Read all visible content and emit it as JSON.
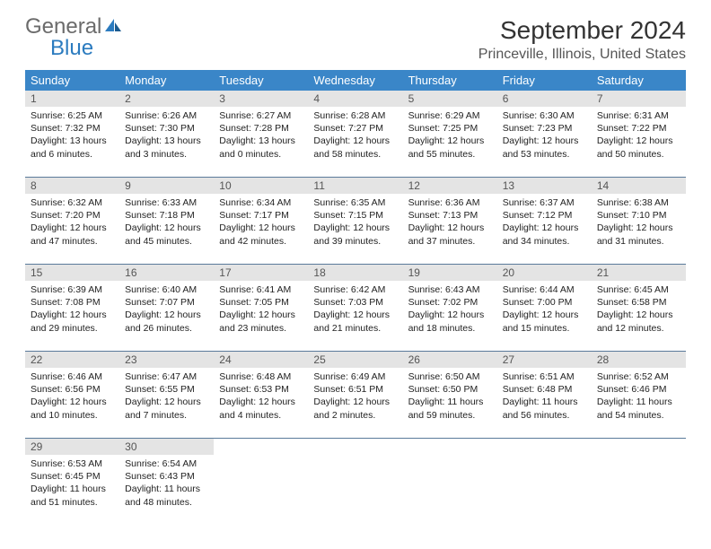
{
  "logo": {
    "text_gray": "General",
    "text_blue": "Blue"
  },
  "title": "September 2024",
  "location": "Princeville, Illinois, United States",
  "colors": {
    "header_bg": "#3a86c8",
    "header_text": "#ffffff",
    "daynum_bg": "#e4e4e4",
    "daynum_text": "#555555",
    "cell_text": "#222222",
    "border": "#5a7a9a",
    "logo_gray": "#6b6b6b",
    "logo_blue": "#2b7bbf"
  },
  "day_headers": [
    "Sunday",
    "Monday",
    "Tuesday",
    "Wednesday",
    "Thursday",
    "Friday",
    "Saturday"
  ],
  "weeks": [
    [
      {
        "num": "1",
        "sunrise": "Sunrise: 6:25 AM",
        "sunset": "Sunset: 7:32 PM",
        "daylight1": "Daylight: 13 hours",
        "daylight2": "and 6 minutes."
      },
      {
        "num": "2",
        "sunrise": "Sunrise: 6:26 AM",
        "sunset": "Sunset: 7:30 PM",
        "daylight1": "Daylight: 13 hours",
        "daylight2": "and 3 minutes."
      },
      {
        "num": "3",
        "sunrise": "Sunrise: 6:27 AM",
        "sunset": "Sunset: 7:28 PM",
        "daylight1": "Daylight: 13 hours",
        "daylight2": "and 0 minutes."
      },
      {
        "num": "4",
        "sunrise": "Sunrise: 6:28 AM",
        "sunset": "Sunset: 7:27 PM",
        "daylight1": "Daylight: 12 hours",
        "daylight2": "and 58 minutes."
      },
      {
        "num": "5",
        "sunrise": "Sunrise: 6:29 AM",
        "sunset": "Sunset: 7:25 PM",
        "daylight1": "Daylight: 12 hours",
        "daylight2": "and 55 minutes."
      },
      {
        "num": "6",
        "sunrise": "Sunrise: 6:30 AM",
        "sunset": "Sunset: 7:23 PM",
        "daylight1": "Daylight: 12 hours",
        "daylight2": "and 53 minutes."
      },
      {
        "num": "7",
        "sunrise": "Sunrise: 6:31 AM",
        "sunset": "Sunset: 7:22 PM",
        "daylight1": "Daylight: 12 hours",
        "daylight2": "and 50 minutes."
      }
    ],
    [
      {
        "num": "8",
        "sunrise": "Sunrise: 6:32 AM",
        "sunset": "Sunset: 7:20 PM",
        "daylight1": "Daylight: 12 hours",
        "daylight2": "and 47 minutes."
      },
      {
        "num": "9",
        "sunrise": "Sunrise: 6:33 AM",
        "sunset": "Sunset: 7:18 PM",
        "daylight1": "Daylight: 12 hours",
        "daylight2": "and 45 minutes."
      },
      {
        "num": "10",
        "sunrise": "Sunrise: 6:34 AM",
        "sunset": "Sunset: 7:17 PM",
        "daylight1": "Daylight: 12 hours",
        "daylight2": "and 42 minutes."
      },
      {
        "num": "11",
        "sunrise": "Sunrise: 6:35 AM",
        "sunset": "Sunset: 7:15 PM",
        "daylight1": "Daylight: 12 hours",
        "daylight2": "and 39 minutes."
      },
      {
        "num": "12",
        "sunrise": "Sunrise: 6:36 AM",
        "sunset": "Sunset: 7:13 PM",
        "daylight1": "Daylight: 12 hours",
        "daylight2": "and 37 minutes."
      },
      {
        "num": "13",
        "sunrise": "Sunrise: 6:37 AM",
        "sunset": "Sunset: 7:12 PM",
        "daylight1": "Daylight: 12 hours",
        "daylight2": "and 34 minutes."
      },
      {
        "num": "14",
        "sunrise": "Sunrise: 6:38 AM",
        "sunset": "Sunset: 7:10 PM",
        "daylight1": "Daylight: 12 hours",
        "daylight2": "and 31 minutes."
      }
    ],
    [
      {
        "num": "15",
        "sunrise": "Sunrise: 6:39 AM",
        "sunset": "Sunset: 7:08 PM",
        "daylight1": "Daylight: 12 hours",
        "daylight2": "and 29 minutes."
      },
      {
        "num": "16",
        "sunrise": "Sunrise: 6:40 AM",
        "sunset": "Sunset: 7:07 PM",
        "daylight1": "Daylight: 12 hours",
        "daylight2": "and 26 minutes."
      },
      {
        "num": "17",
        "sunrise": "Sunrise: 6:41 AM",
        "sunset": "Sunset: 7:05 PM",
        "daylight1": "Daylight: 12 hours",
        "daylight2": "and 23 minutes."
      },
      {
        "num": "18",
        "sunrise": "Sunrise: 6:42 AM",
        "sunset": "Sunset: 7:03 PM",
        "daylight1": "Daylight: 12 hours",
        "daylight2": "and 21 minutes."
      },
      {
        "num": "19",
        "sunrise": "Sunrise: 6:43 AM",
        "sunset": "Sunset: 7:02 PM",
        "daylight1": "Daylight: 12 hours",
        "daylight2": "and 18 minutes."
      },
      {
        "num": "20",
        "sunrise": "Sunrise: 6:44 AM",
        "sunset": "Sunset: 7:00 PM",
        "daylight1": "Daylight: 12 hours",
        "daylight2": "and 15 minutes."
      },
      {
        "num": "21",
        "sunrise": "Sunrise: 6:45 AM",
        "sunset": "Sunset: 6:58 PM",
        "daylight1": "Daylight: 12 hours",
        "daylight2": "and 12 minutes."
      }
    ],
    [
      {
        "num": "22",
        "sunrise": "Sunrise: 6:46 AM",
        "sunset": "Sunset: 6:56 PM",
        "daylight1": "Daylight: 12 hours",
        "daylight2": "and 10 minutes."
      },
      {
        "num": "23",
        "sunrise": "Sunrise: 6:47 AM",
        "sunset": "Sunset: 6:55 PM",
        "daylight1": "Daylight: 12 hours",
        "daylight2": "and 7 minutes."
      },
      {
        "num": "24",
        "sunrise": "Sunrise: 6:48 AM",
        "sunset": "Sunset: 6:53 PM",
        "daylight1": "Daylight: 12 hours",
        "daylight2": "and 4 minutes."
      },
      {
        "num": "25",
        "sunrise": "Sunrise: 6:49 AM",
        "sunset": "Sunset: 6:51 PM",
        "daylight1": "Daylight: 12 hours",
        "daylight2": "and 2 minutes."
      },
      {
        "num": "26",
        "sunrise": "Sunrise: 6:50 AM",
        "sunset": "Sunset: 6:50 PM",
        "daylight1": "Daylight: 11 hours",
        "daylight2": "and 59 minutes."
      },
      {
        "num": "27",
        "sunrise": "Sunrise: 6:51 AM",
        "sunset": "Sunset: 6:48 PM",
        "daylight1": "Daylight: 11 hours",
        "daylight2": "and 56 minutes."
      },
      {
        "num": "28",
        "sunrise": "Sunrise: 6:52 AM",
        "sunset": "Sunset: 6:46 PM",
        "daylight1": "Daylight: 11 hours",
        "daylight2": "and 54 minutes."
      }
    ],
    [
      {
        "num": "29",
        "sunrise": "Sunrise: 6:53 AM",
        "sunset": "Sunset: 6:45 PM",
        "daylight1": "Daylight: 11 hours",
        "daylight2": "and 51 minutes."
      },
      {
        "num": "30",
        "sunrise": "Sunrise: 6:54 AM",
        "sunset": "Sunset: 6:43 PM",
        "daylight1": "Daylight: 11 hours",
        "daylight2": "and 48 minutes."
      },
      {
        "empty": true
      },
      {
        "empty": true
      },
      {
        "empty": true
      },
      {
        "empty": true
      },
      {
        "empty": true
      }
    ]
  ]
}
